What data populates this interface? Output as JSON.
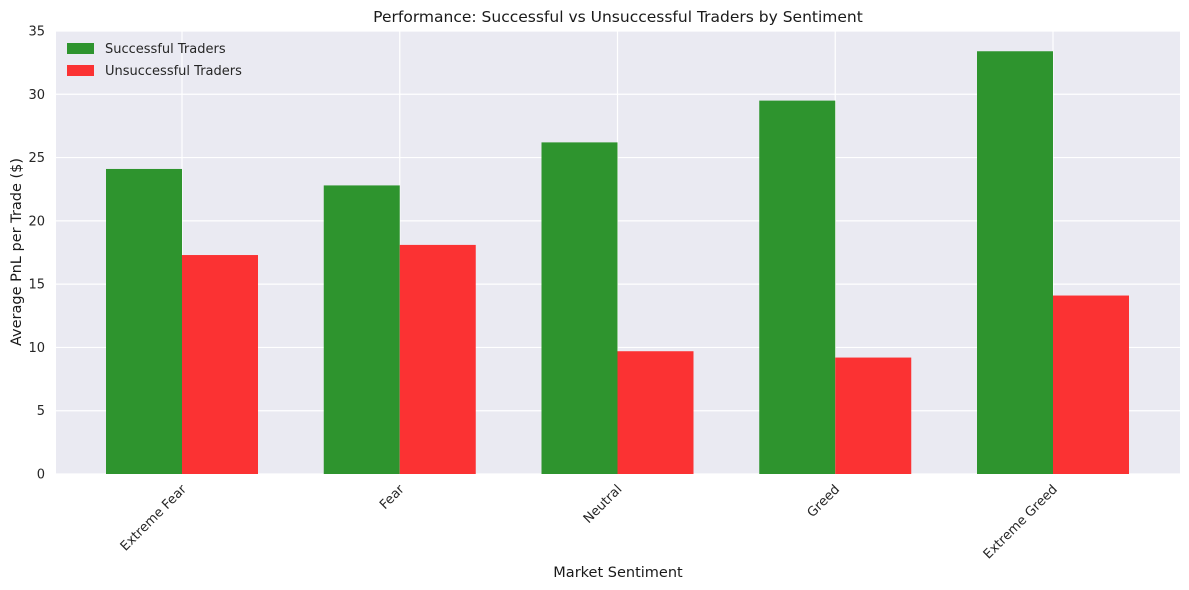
{
  "chart_data": {
    "type": "bar",
    "title": "Performance: Successful vs Unsuccessful Traders by Sentiment",
    "xlabel": "Market Sentiment",
    "ylabel": "Average PnL per Trade ($)",
    "categories": [
      "Extreme Fear",
      "Fear",
      "Neutral",
      "Greed",
      "Extreme Greed"
    ],
    "series": [
      {
        "name": "Successful Traders",
        "color": "#2e942e",
        "values": [
          24.1,
          22.8,
          26.2,
          29.5,
          33.4
        ]
      },
      {
        "name": "Unsuccessful Traders",
        "color": "#fb3233",
        "values": [
          17.3,
          18.1,
          9.7,
          9.2,
          14.1
        ]
      }
    ],
    "ylim": [
      0,
      35
    ],
    "yticks": [
      0,
      5,
      10,
      15,
      20,
      25,
      30,
      35
    ],
    "grid": true,
    "legend_position": "top-left",
    "plot_background": "#eaeaf2"
  }
}
